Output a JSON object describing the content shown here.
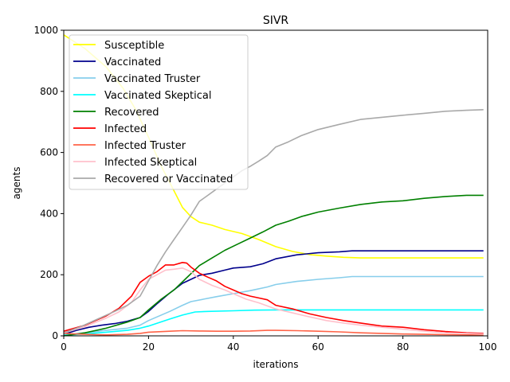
{
  "chart_data": {
    "type": "line",
    "title": "SIVR",
    "xlabel": "iterations",
    "ylabel": "agents",
    "xlim": [
      0,
      100
    ],
    "ylim": [
      0,
      1000
    ],
    "xticks": [
      0,
      20,
      40,
      60,
      80,
      100
    ],
    "yticks": [
      0,
      200,
      400,
      600,
      800,
      1000
    ],
    "grid": false,
    "legend": "top-left",
    "series": [
      {
        "name": "Susceptible",
        "color": "#ffff00",
        "x": [
          0,
          5,
          10,
          14,
          17,
          20,
          23,
          26,
          28,
          30,
          32,
          35,
          38,
          42,
          46,
          50,
          54,
          58,
          62,
          66,
          70,
          80,
          90,
          99
        ],
        "y": [
          985,
          940,
          880,
          810,
          740,
          650,
          555,
          475,
          420,
          390,
          372,
          362,
          348,
          335,
          315,
          292,
          276,
          266,
          261,
          257,
          255,
          255,
          255,
          255
        ]
      },
      {
        "name": "Vaccinated",
        "color": "#00008b",
        "x": [
          0,
          3,
          6,
          9,
          12,
          15,
          18,
          20,
          22,
          25,
          28,
          30,
          32,
          35,
          38,
          40,
          44,
          47,
          50,
          55,
          60,
          65,
          68,
          80,
          90,
          99
        ],
        "y": [
          5,
          18,
          28,
          35,
          40,
          48,
          60,
          80,
          105,
          140,
          172,
          185,
          198,
          205,
          215,
          222,
          226,
          236,
          252,
          265,
          272,
          275,
          278,
          278,
          278,
          278
        ]
      },
      {
        "name": "Vaccinated Truster",
        "color": "#87ceeb",
        "x": [
          0,
          5,
          10,
          15,
          18,
          20,
          25,
          28,
          30,
          33,
          36,
          40,
          44,
          48,
          50,
          55,
          60,
          65,
          68,
          80,
          90,
          99
        ],
        "y": [
          3,
          10,
          18,
          25,
          35,
          50,
          80,
          100,
          112,
          120,
          128,
          138,
          148,
          160,
          168,
          178,
          185,
          190,
          194,
          194,
          194,
          194
        ]
      },
      {
        "name": "Vaccinated Skeptical",
        "color": "#00ffff",
        "x": [
          0,
          5,
          10,
          15,
          18,
          20,
          25,
          28,
          31,
          34,
          40,
          45,
          50,
          60,
          70,
          80,
          90,
          99
        ],
        "y": [
          2,
          6,
          12,
          18,
          25,
          32,
          55,
          68,
          78,
          80,
          82,
          84,
          85,
          85,
          85,
          85,
          85,
          85
        ]
      },
      {
        "name": "Recovered",
        "color": "#008000",
        "x": [
          0,
          5,
          10,
          15,
          18,
          20,
          23,
          26,
          29,
          32,
          35,
          38,
          41,
          44,
          47,
          50,
          53,
          56,
          60,
          65,
          70,
          75,
          80,
          85,
          90,
          95,
          99
        ],
        "y": [
          0,
          10,
          25,
          45,
          60,
          85,
          120,
          150,
          190,
          230,
          255,
          280,
          300,
          320,
          340,
          362,
          375,
          390,
          405,
          418,
          430,
          438,
          442,
          450,
          456,
          460,
          460
        ]
      },
      {
        "name": "Infected",
        "color": "#ff0000",
        "x": [
          0,
          5,
          10,
          13,
          16,
          18,
          20,
          22,
          24,
          26,
          28,
          29,
          30,
          32,
          34,
          36,
          38,
          40,
          42,
          44,
          46,
          48,
          50,
          54,
          58,
          62,
          66,
          70,
          75,
          80,
          85,
          90,
          95,
          99
        ],
        "y": [
          15,
          35,
          65,
          90,
          130,
          175,
          195,
          210,
          232,
          232,
          240,
          238,
          225,
          205,
          192,
          180,
          162,
          150,
          138,
          130,
          124,
          118,
          100,
          88,
          72,
          60,
          50,
          42,
          32,
          28,
          20,
          14,
          10,
          8
        ]
      },
      {
        "name": "Infected Truster",
        "color": "#ff6347",
        "x": [
          0,
          5,
          10,
          15,
          18,
          20,
          25,
          28,
          32,
          36,
          40,
          44,
          48,
          50,
          55,
          60,
          65,
          70,
          75,
          80,
          85,
          90,
          99
        ],
        "y": [
          8,
          5,
          3,
          5,
          8,
          12,
          15,
          17,
          16,
          15,
          15,
          16,
          18,
          18,
          17,
          15,
          13,
          10,
          8,
          6,
          5,
          4,
          3
        ]
      },
      {
        "name": "Infected Skeptical",
        "color": "#ffc0cb",
        "x": [
          0,
          5,
          10,
          13,
          16,
          18,
          20,
          22,
          24,
          26,
          28,
          30,
          32,
          35,
          38,
          40,
          43,
          46,
          50,
          54,
          58,
          62,
          66,
          70,
          75,
          80,
          85,
          90,
          99
        ],
        "y": [
          10,
          30,
          58,
          78,
          110,
          150,
          185,
          200,
          215,
          218,
          222,
          210,
          185,
          165,
          150,
          138,
          120,
          108,
          88,
          75,
          62,
          50,
          42,
          35,
          28,
          22,
          15,
          10,
          6
        ]
      },
      {
        "name": "Recovered or Vaccinated",
        "color": "#a9a9a9",
        "x": [
          0,
          4,
          8,
          12,
          15,
          18,
          20,
          22,
          24,
          26,
          28,
          30,
          32,
          34,
          36,
          38,
          40,
          42,
          44,
          46,
          48,
          50,
          53,
          56,
          60,
          65,
          70,
          75,
          80,
          85,
          90,
          95,
          99
        ],
        "y": [
          10,
          30,
          55,
          80,
          100,
          130,
          180,
          230,
          275,
          315,
          355,
          395,
          440,
          460,
          480,
          500,
          520,
          540,
          555,
          572,
          590,
          618,
          635,
          655,
          675,
          692,
          708,
          715,
          722,
          728,
          735,
          738,
          740
        ]
      }
    ]
  }
}
